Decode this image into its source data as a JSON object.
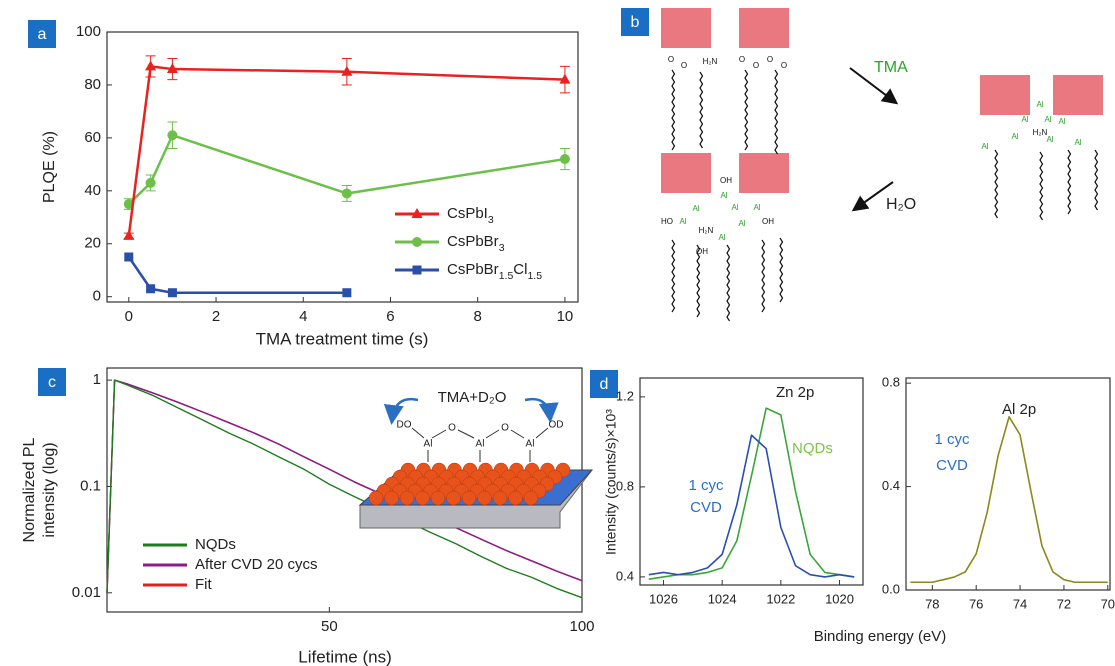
{
  "panel_labels": [
    "a",
    "b",
    "c",
    "d"
  ],
  "diagram": {
    "arrows": [
      "TMA",
      "H₂O"
    ],
    "atoms": [
      "O",
      "O",
      "H₂N",
      "O",
      "O",
      "O",
      "O",
      "Al",
      "Al",
      "Al",
      "Al",
      "H₂N",
      "Al",
      "Al",
      "Al",
      "Al",
      "OH",
      "Al",
      "Al",
      "Al",
      "Al",
      "Al",
      "Al",
      "HO",
      "OH",
      "H₂N",
      "Al",
      "OH"
    ]
  },
  "chart_data": [
    {
      "type": "line",
      "xlabel": "TMA treatment time (s)",
      "ylabel": "PLQE (%)",
      "xlim": [
        -0.5,
        10.3
      ],
      "ylim": [
        -2,
        100
      ],
      "xticks": [
        0,
        2,
        4,
        6,
        8,
        10
      ],
      "yticks": [
        0,
        20,
        40,
        60,
        80,
        100
      ],
      "x": [
        0,
        0.5,
        1,
        5,
        10
      ],
      "legend": "lower right",
      "series": [
        {
          "name": "CsPbI3",
          "color": "#e8231f",
          "marker": "triangle",
          "values": [
            23,
            87,
            86,
            85,
            82
          ],
          "errors": [
            1,
            4,
            4,
            5,
            5
          ]
        },
        {
          "name": "CsPbBr3",
          "color": "#6cc04a",
          "marker": "circle",
          "values": [
            35,
            43,
            61,
            39,
            52
          ],
          "errors": [
            2,
            3,
            5,
            3,
            4
          ]
        },
        {
          "name": "CsPbBr1.5Cl1.5",
          "color": "#2a4fa8",
          "marker": "square",
          "values": [
            15,
            3,
            1.5,
            1.5,
            null
          ]
        }
      ]
    },
    {
      "type": "line",
      "xlabel": "Lifetime (ns)",
      "ylabel": [
        "Normalized PL",
        "intensity (log)"
      ],
      "ylog": true,
      "xlim": [
        6,
        100
      ],
      "ylim": [
        0.0066,
        1.3
      ],
      "xticks": [
        50,
        100
      ],
      "yticks": [
        0.01,
        0.1,
        1
      ],
      "legend": "lower left",
      "x": [
        6,
        7.5,
        10,
        15,
        20,
        25,
        30,
        35,
        40,
        45,
        50,
        55,
        60,
        65,
        70,
        75,
        80,
        85,
        90,
        95,
        100
      ],
      "series": [
        {
          "name": "NQDs",
          "color": "#1e7b1e",
          "values": [
            0.01,
            1,
            0.9,
            0.72,
            0.55,
            0.42,
            0.32,
            0.25,
            0.19,
            0.145,
            0.105,
            0.08,
            0.062,
            0.048,
            0.037,
            0.029,
            0.022,
            0.017,
            0.014,
            0.011,
            0.009
          ]
        },
        {
          "name": "After CVD 20 cycs",
          "color": "#8b1a8b",
          "values": [
            0.01,
            1,
            0.92,
            0.76,
            0.62,
            0.5,
            0.4,
            0.32,
            0.25,
            0.19,
            0.145,
            0.11,
            0.086,
            0.067,
            0.052,
            0.041,
            0.032,
            0.025,
            0.02,
            0.016,
            0.013
          ]
        },
        {
          "name": "Fit",
          "color": "#e02020",
          "values": [
            0.01,
            1,
            0.92,
            0.76,
            0.62,
            0.5,
            0.4,
            0.32,
            0.25,
            0.19,
            0.145,
            0.11,
            0.086,
            0.067,
            0.052,
            0.041,
            0.032,
            0.025,
            0.02,
            0.016,
            0.013
          ]
        }
      ],
      "inset": {
        "title": "TMA+D₂O",
        "labels": [
          "DO",
          "Al",
          "O",
          "Al",
          "O",
          "Al",
          "OD"
        ]
      }
    },
    {
      "type": "line",
      "ylabel": "Intensity (counts/s)×10³",
      "xlim": [
        1026.8,
        1019.2
      ],
      "ylim": [
        0.364,
        1.284
      ],
      "xticks": [
        1026,
        1024,
        1022,
        1020
      ],
      "yticks": [
        0.4,
        0.8,
        1.2
      ],
      "x": [
        1026.5,
        1026,
        1025.5,
        1025,
        1024.5,
        1024,
        1023.5,
        1023,
        1022.5,
        1022,
        1021.5,
        1021,
        1020.5,
        1020,
        1019.5
      ],
      "series": [
        {
          "color": "#2a4fb0",
          "values": [
            0.41,
            0.42,
            0.41,
            0.42,
            0.44,
            0.5,
            0.72,
            1.03,
            0.97,
            0.62,
            0.45,
            0.41,
            0.4,
            0.41,
            0.4
          ]
        },
        {
          "color": "#3aa63a",
          "values": [
            0.39,
            0.4,
            0.41,
            0.41,
            0.42,
            0.44,
            0.56,
            0.85,
            1.15,
            1.12,
            0.78,
            0.5,
            0.42,
            0.41,
            0.4
          ]
        }
      ],
      "annotations": [
        {
          "text": "Zn 2p",
          "color": "#222"
        },
        {
          "text": "NQDs",
          "color": "#7cc44a"
        },
        {
          "text": "1 cyc",
          "color": "#2a6fc4"
        },
        {
          "text": "CVD",
          "color": "#2a6fc4"
        }
      ]
    },
    {
      "type": "line",
      "xlabel": "Binding energy (eV)",
      "xlim": [
        79.2,
        69.9
      ],
      "ylim": [
        0,
        0.82
      ],
      "xticks": [
        78,
        76,
        74,
        72,
        70
      ],
      "yticks": [
        {
          "value": 0,
          "label": "0.0"
        },
        0.4,
        0.8
      ],
      "x": [
        79,
        78.5,
        78,
        77.5,
        77,
        76.5,
        76,
        75.5,
        75,
        74.5,
        74,
        73.5,
        73,
        72.5,
        72,
        71.5,
        71,
        70.5,
        70
      ],
      "series": [
        {
          "color": "#8a8a1c",
          "values": [
            0.03,
            0.03,
            0.03,
            0.04,
            0.05,
            0.07,
            0.14,
            0.3,
            0.52,
            0.67,
            0.6,
            0.38,
            0.17,
            0.07,
            0.04,
            0.03,
            0.03,
            0.03,
            0.03
          ]
        }
      ],
      "annotations": [
        {
          "text": "Al 2p",
          "color": "#222"
        },
        {
          "text": "1 cyc",
          "color": "#2a6fc4"
        },
        {
          "text": "CVD",
          "color": "#2a6fc4"
        }
      ]
    }
  ]
}
